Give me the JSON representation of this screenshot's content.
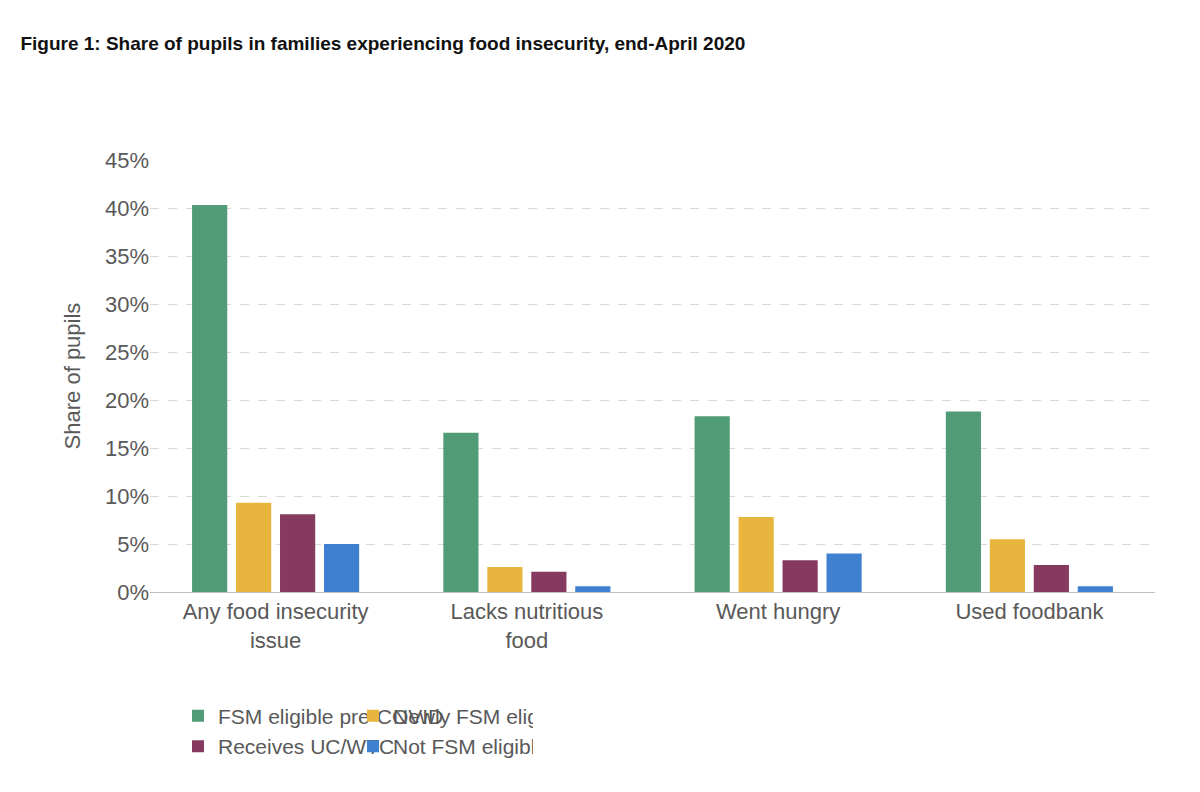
{
  "chart_data": {
    "type": "bar",
    "title": "Figure 1: Share of pupils in families experiencing food insecurity, end-April 2020",
    "y_label": "Share of pupils",
    "categories": [
      "Any food insecurity issue",
      "Lacks nutritious food",
      "Went hungry",
      "Used foodbank"
    ],
    "series": [
      {
        "name": "FSM eligible pre-COVID",
        "color": "#519b76",
        "values": [
          40.3,
          16.6,
          18.3,
          18.8
        ]
      },
      {
        "name": "Newly FSM eligible",
        "color": "#e8b63f",
        "values": [
          9.3,
          2.6,
          7.8,
          5.5
        ]
      },
      {
        "name": "Receives UC/WTC",
        "color": "#873a5f",
        "values": [
          8.1,
          2.1,
          3.3,
          2.8
        ]
      },
      {
        "name": "Not FSM eligible",
        "color": "#3f80d0",
        "values": [
          5.0,
          0.6,
          4.0,
          0.6
        ]
      }
    ],
    "ylim": [
      0,
      45
    ],
    "yticks": [
      {
        "value": 0,
        "label": "0%"
      },
      {
        "value": 5,
        "label": "5%"
      },
      {
        "value": 10,
        "label": "10%"
      },
      {
        "value": 15,
        "label": "15%"
      },
      {
        "value": 20,
        "label": "20%"
      },
      {
        "value": 25,
        "label": "25%"
      },
      {
        "value": 30,
        "label": "30%"
      },
      {
        "value": 35,
        "label": "35%"
      },
      {
        "value": 40,
        "label": "40%"
      },
      {
        "value": 45,
        "label": "45%"
      }
    ],
    "grid": true,
    "legend": "bottom"
  }
}
